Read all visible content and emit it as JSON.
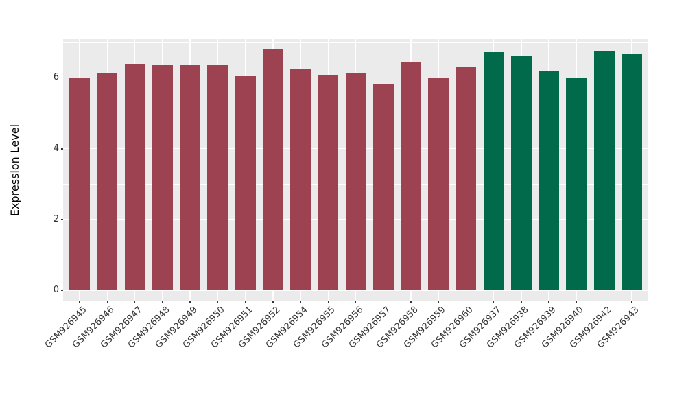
{
  "chart_data": {
    "type": "bar",
    "title": "",
    "xlabel": "",
    "ylabel": "Expression Level",
    "ylim": [
      -0.31,
      7.09
    ],
    "yticks": [
      0,
      2,
      4,
      6
    ],
    "yticks_minor": [
      1,
      3,
      5,
      7
    ],
    "grid": "on",
    "legend_position": "none",
    "colors": {
      "panel_background": "#EBEBEB",
      "grid_major": "#FFFFFF",
      "grid_minor": "#FFFFFF",
      "tick_mark": "#333333",
      "axis_text": "#333333",
      "axis_title": "#000000",
      "group_a_fill": "#9C4251",
      "group_b_fill": "#016A4A"
    },
    "groups": {
      "group_a": "#9C4251",
      "group_b": "#016A4A"
    },
    "bars": [
      {
        "label": "GSM926945",
        "value": 5.98,
        "group": "group_a"
      },
      {
        "label": "GSM926946",
        "value": 6.14,
        "group": "group_a"
      },
      {
        "label": "GSM926947",
        "value": 6.4,
        "group": "group_a"
      },
      {
        "label": "GSM926948",
        "value": 6.38,
        "group": "group_a"
      },
      {
        "label": "GSM926949",
        "value": 6.36,
        "group": "group_a"
      },
      {
        "label": "GSM926950",
        "value": 6.38,
        "group": "group_a"
      },
      {
        "label": "GSM926951",
        "value": 6.04,
        "group": "group_a"
      },
      {
        "label": "GSM926952",
        "value": 6.79,
        "group": "group_a"
      },
      {
        "label": "GSM926954",
        "value": 6.26,
        "group": "group_a"
      },
      {
        "label": "GSM926955",
        "value": 6.07,
        "group": "group_a"
      },
      {
        "label": "GSM926956",
        "value": 6.12,
        "group": "group_a"
      },
      {
        "label": "GSM926957",
        "value": 5.83,
        "group": "group_a"
      },
      {
        "label": "GSM926958",
        "value": 6.45,
        "group": "group_a"
      },
      {
        "label": "GSM926959",
        "value": 6.01,
        "group": "group_a"
      },
      {
        "label": "GSM926960",
        "value": 6.31,
        "group": "group_a"
      },
      {
        "label": "GSM926937",
        "value": 6.73,
        "group": "group_b"
      },
      {
        "label": "GSM926938",
        "value": 6.61,
        "group": "group_b"
      },
      {
        "label": "GSM926939",
        "value": 6.2,
        "group": "group_b"
      },
      {
        "label": "GSM926940",
        "value": 5.99,
        "group": "group_b"
      },
      {
        "label": "GSM926942",
        "value": 6.74,
        "group": "group_b"
      },
      {
        "label": "GSM926943",
        "value": 6.68,
        "group": "group_b"
      }
    ]
  }
}
